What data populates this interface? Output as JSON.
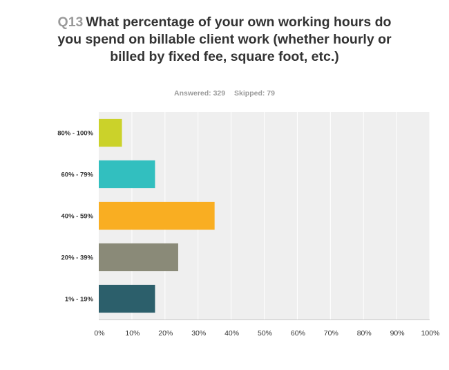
{
  "header": {
    "question_number": "Q13",
    "question_text": "What percentage of your own working hours do you spend on billable client work (whether hourly or billed by fixed fee, square foot, etc.)",
    "answered": "Answered: 329",
    "skipped": "Skipped: 79"
  },
  "chart_data": {
    "type": "bar",
    "orientation": "horizontal",
    "title": "Q13 What percentage of your own working hours do you spend on billable client work (whether hourly or billed by fixed fee, square foot, etc.)",
    "categories": [
      "80% - 100%",
      "60% - 79%",
      "40% - 59%",
      "20% - 39%",
      "1% - 19%"
    ],
    "values": [
      7,
      17,
      35,
      24,
      17
    ],
    "colors": [
      "#cbd22a",
      "#32bfbf",
      "#f9ae22",
      "#8a8a78",
      "#2c5f6b"
    ],
    "xlim": [
      0,
      100
    ],
    "xticks": [
      0,
      10,
      20,
      30,
      40,
      50,
      60,
      70,
      80,
      90,
      100
    ],
    "xtick_labels": [
      "0%",
      "10%",
      "20%",
      "30%",
      "40%",
      "50%",
      "60%",
      "70%",
      "80%",
      "90%",
      "100%"
    ],
    "grid": true,
    "plot_background": "#efefef",
    "grid_color": "#ffffff"
  }
}
